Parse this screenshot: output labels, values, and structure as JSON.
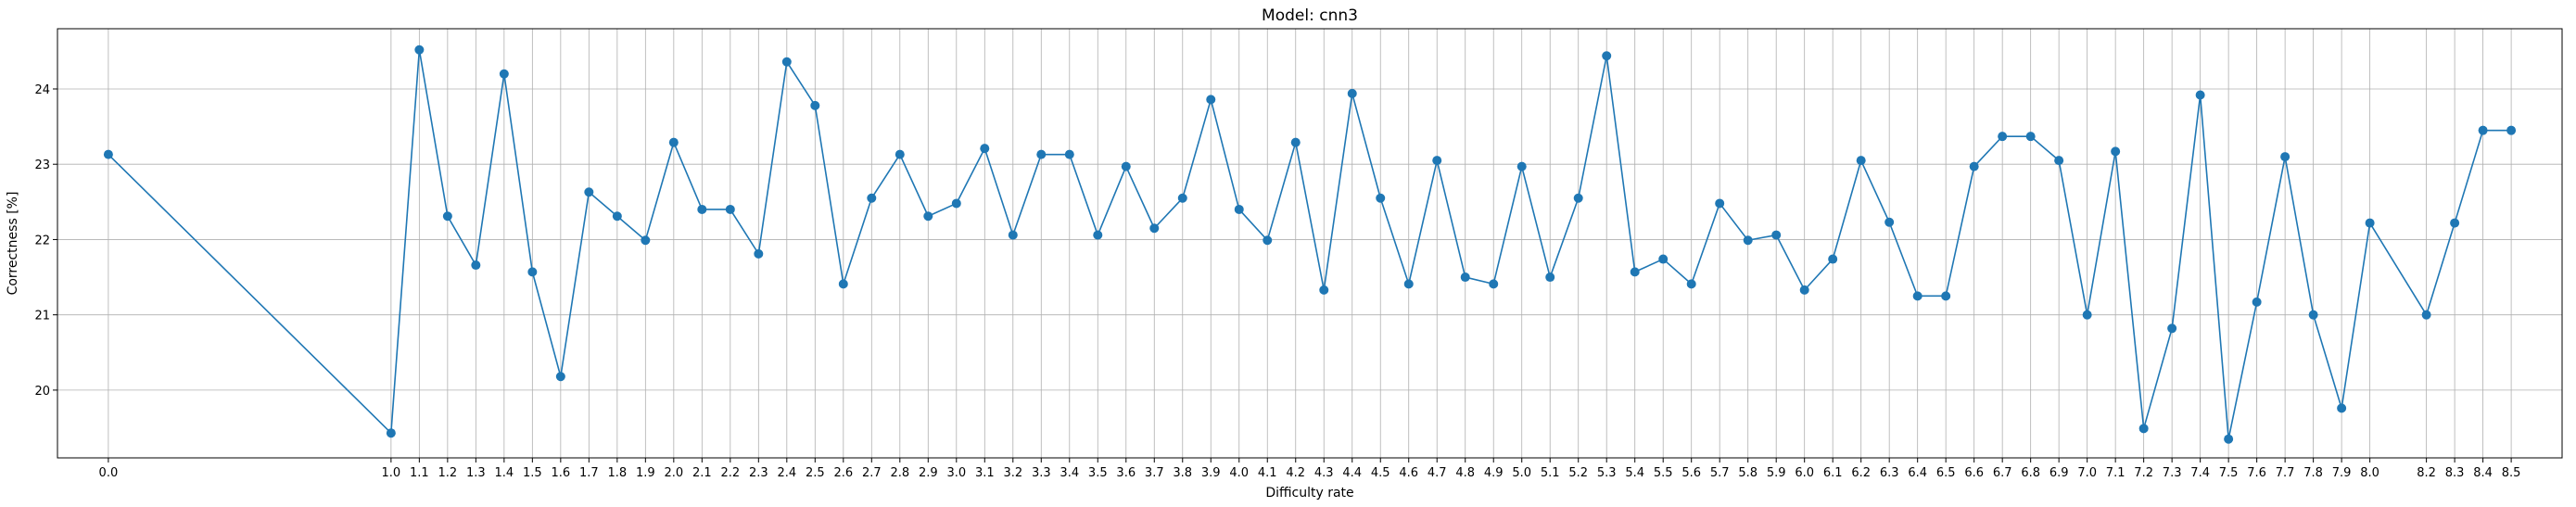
{
  "chart_data": {
    "type": "line",
    "title": "Model: cnn3",
    "xlabel": "Difficulty rate",
    "ylabel": "Correctness [%]",
    "grid": true,
    "marker": "circle",
    "color": "#1f77b4",
    "xlim": [
      -0.18,
      8.68
    ],
    "ylim": [
      19.1,
      24.8
    ],
    "yticks": [
      20,
      21,
      22,
      23,
      24
    ],
    "x": [
      0.0,
      1.0,
      1.1,
      1.2,
      1.3,
      1.4,
      1.5,
      1.6,
      1.7,
      1.8,
      1.9,
      2.0,
      2.1,
      2.2,
      2.3,
      2.4,
      2.5,
      2.6,
      2.7,
      2.8,
      2.9,
      3.0,
      3.1,
      3.2,
      3.3,
      3.4,
      3.5,
      3.6,
      3.7,
      3.8,
      3.9,
      4.0,
      4.1,
      4.2,
      4.3,
      4.4,
      4.5,
      4.6,
      4.7,
      4.8,
      4.9,
      5.0,
      5.1,
      5.2,
      5.3,
      5.4,
      5.5,
      5.6,
      5.7,
      5.8,
      5.9,
      6.0,
      6.1,
      6.2,
      6.3,
      6.4,
      6.5,
      6.6,
      6.7,
      6.8,
      6.9,
      7.0,
      7.1,
      7.2,
      7.3,
      7.4,
      7.5,
      7.6,
      7.7,
      7.8,
      7.9,
      8.0,
      8.2,
      8.3,
      8.4,
      8.5
    ],
    "xtick_labels": [
      "0.0",
      "1.0",
      "1.1",
      "1.2",
      "1.3",
      "1.4",
      "1.5",
      "1.6",
      "1.7",
      "1.8",
      "1.9",
      "2.0",
      "2.1",
      "2.2",
      "2.3",
      "2.4",
      "2.5",
      "2.6",
      "2.7",
      "2.8",
      "2.9",
      "3.0",
      "3.1",
      "3.2",
      "3.3",
      "3.4",
      "3.5",
      "3.6",
      "3.7",
      "3.8",
      "3.9",
      "4.0",
      "4.1",
      "4.2",
      "4.3",
      "4.4",
      "4.5",
      "4.6",
      "4.7",
      "4.8",
      "4.9",
      "5.0",
      "5.1",
      "5.2",
      "5.3",
      "5.4",
      "5.5",
      "5.6",
      "5.7",
      "5.8",
      "5.9",
      "6.0",
      "6.1",
      "6.2",
      "6.3",
      "6.4",
      "6.5",
      "6.6",
      "6.7",
      "6.8",
      "6.9",
      "7.0",
      "7.1",
      "7.2",
      "7.3",
      "7.4",
      "7.5",
      "7.6",
      "7.7",
      "7.8",
      "7.9",
      "8.0",
      "8.2",
      "8.3",
      "8.4",
      "8.5"
    ],
    "y": [
      23.13,
      19.43,
      24.52,
      22.31,
      21.66,
      24.2,
      21.57,
      20.18,
      22.63,
      22.31,
      21.99,
      23.29,
      22.4,
      22.4,
      21.81,
      24.36,
      23.78,
      21.41,
      22.55,
      23.13,
      22.31,
      22.48,
      23.21,
      22.06,
      23.13,
      23.13,
      22.06,
      22.97,
      22.15,
      22.55,
      23.86,
      22.4,
      21.99,
      23.29,
      21.33,
      23.94,
      22.55,
      21.41,
      23.05,
      21.5,
      21.41,
      22.97,
      21.5,
      22.55,
      24.44,
      21.57,
      21.74,
      21.41,
      22.48,
      21.99,
      22.06,
      21.33,
      21.74,
      23.05,
      22.23,
      21.25,
      21.25,
      22.97,
      23.37,
      23.37,
      23.05,
      21.0,
      23.17,
      19.49,
      20.82,
      23.92,
      19.35,
      21.17,
      23.1,
      21.0,
      19.76,
      22.22,
      21.0,
      22.22,
      23.45,
      23.45
    ]
  }
}
